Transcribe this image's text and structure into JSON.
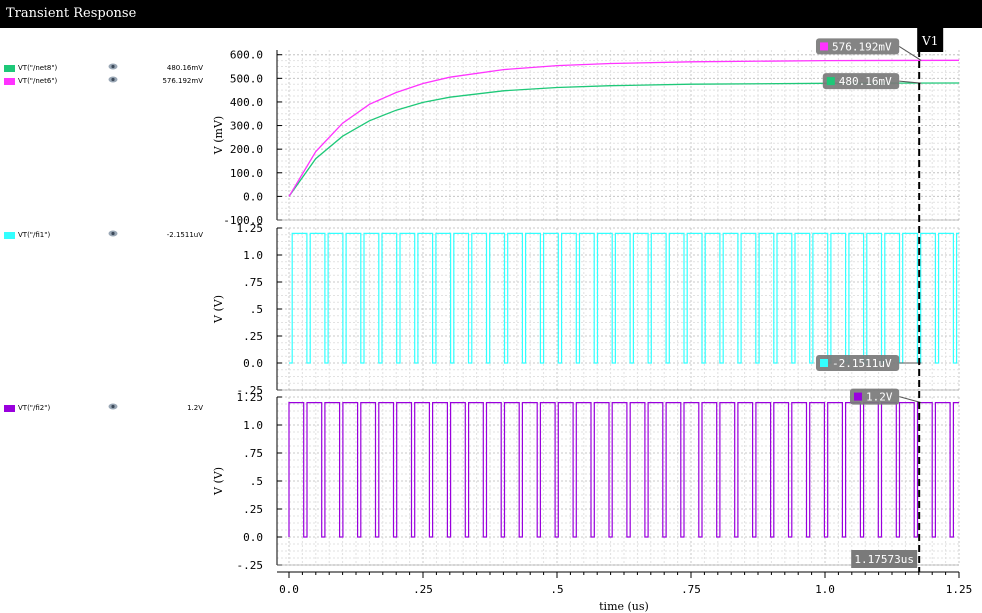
{
  "window": {
    "title": "Transient Response"
  },
  "legend": [
    {
      "name": "VT(\"/net8\")",
      "value": "480.16mV",
      "color": "#1ec878",
      "panel": 0
    },
    {
      "name": "VT(\"/net6\")",
      "value": "576.192mV",
      "color": "#ff33ff",
      "panel": 0
    },
    {
      "name": "VT(\"/fi1\")",
      "value": "-2.1511uV",
      "color": "#33ffff",
      "panel": 1
    },
    {
      "name": "VT(\"/fi2\")",
      "value": "1.2V",
      "color": "#9900dd",
      "panel": 2
    }
  ],
  "cursor": {
    "name": "V1",
    "x": 1.17573,
    "x_label": "1.17573us"
  },
  "chart_data": [
    {
      "type": "line",
      "xlabel": "time (us)",
      "ylabel": "V (mV)",
      "xlim": [
        0,
        1.25
      ],
      "ylim": [
        -100,
        620
      ],
      "x_ticks": [
        0,
        0.25,
        0.5,
        0.75,
        1.0,
        1.25
      ],
      "x_tick_labels": [
        "0.0",
        ".25",
        ".5",
        ".75",
        "1.0",
        "1.25"
      ],
      "y_ticks": [
        -100,
        0,
        100,
        200,
        300,
        400,
        500,
        600
      ],
      "y_tick_labels": [
        "-100.0",
        "0.0",
        "100.0",
        "200.0",
        "300.0",
        "400.0",
        "500.0",
        "600.0"
      ],
      "grid": true,
      "x": [
        0,
        0.05,
        0.1,
        0.15,
        0.2,
        0.25,
        0.3,
        0.4,
        0.5,
        0.6,
        0.75,
        1.0,
        1.25
      ],
      "series": [
        {
          "name": "VT(\"/net8\")",
          "color": "#1ec878",
          "values": [
            0,
            160,
            255,
            320,
            365,
            398,
            420,
            447,
            461,
            469,
            475,
            479,
            480.16
          ]
        },
        {
          "name": "VT(\"/net6\")",
          "color": "#ff33ff",
          "values": [
            0,
            190,
            310,
            390,
            440,
            478,
            505,
            537,
            554,
            563,
            570,
            575,
            576.192
          ]
        }
      ],
      "markers": [
        {
          "series": "VT(\"/net6\")",
          "label": "576.192mV"
        },
        {
          "series": "VT(\"/net8\")",
          "label": "480.16mV"
        }
      ]
    },
    {
      "type": "line",
      "xlabel": "",
      "ylabel": "V (V)",
      "xlim": [
        0,
        1.25
      ],
      "ylim": [
        -0.25,
        1.25
      ],
      "y_ticks": [
        -0.25,
        0,
        0.25,
        0.5,
        0.75,
        1.0,
        1.25
      ],
      "y_tick_labels": [
        "-.25",
        "0.0",
        ".25",
        ".5",
        ".75",
        "1.0",
        "1.25"
      ],
      "grid": true,
      "waveform": "square",
      "period": 0.0335,
      "duty": 0.82,
      "phase": 0.006,
      "low": 0,
      "high": 1.2,
      "series": [
        {
          "name": "VT(\"/fi1\")",
          "color": "#33ffff"
        }
      ],
      "markers": [
        {
          "series": "VT(\"/fi1\")",
          "label": "-2.1511uV"
        }
      ]
    },
    {
      "type": "line",
      "xlabel": "",
      "ylabel": "V (V)",
      "xlim": [
        0,
        1.25
      ],
      "ylim": [
        -0.25,
        1.25
      ],
      "y_ticks": [
        -0.25,
        0,
        0.25,
        0.5,
        0.75,
        1.0,
        1.25
      ],
      "y_tick_labels": [
        "-.25",
        "0.0",
        ".25",
        ".5",
        ".75",
        "1.0",
        "1.25"
      ],
      "grid": true,
      "waveform": "square",
      "period": 0.0335,
      "duty": 0.82,
      "phase": 0.0,
      "low": 0,
      "high": 1.2,
      "series": [
        {
          "name": "VT(\"/fi2\")",
          "color": "#9900dd"
        }
      ],
      "markers": [
        {
          "series": "VT(\"/fi2\")",
          "label": "1.2V"
        }
      ]
    }
  ]
}
